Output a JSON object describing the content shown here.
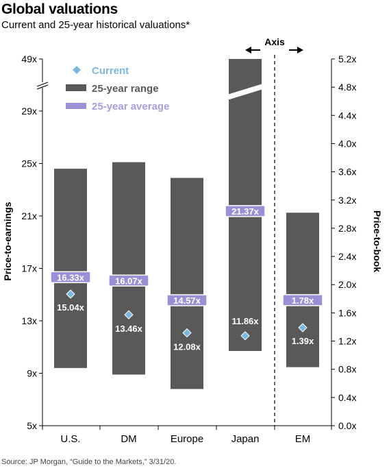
{
  "chart_data": {
    "type": "bar",
    "title": "Global valuations",
    "subtitle": "Current and 25-year historical valuations*",
    "source": "Source: JP Morgan, “Guide to the Markets,” 3/31/20.",
    "categories": [
      "U.S.",
      "DM",
      "Europe",
      "Japan",
      "EM"
    ],
    "left_axis": {
      "label": "Price-to-earnings",
      "ticks": [
        "5x",
        "9x",
        "13x",
        "17x",
        "21x",
        "25x",
        "29x",
        "49x"
      ],
      "ylim": [
        5,
        49
      ],
      "broken": true
    },
    "right_axis": {
      "label": "Price-to-book",
      "ticks": [
        "0.0x",
        "0.4x",
        "0.8x",
        "1.2x",
        "1.6x",
        "2.0x",
        "2.4x",
        "2.8x",
        "3.2x",
        "3.6x",
        "4.0x",
        "4.4x",
        "4.8x",
        "5.2x"
      ],
      "ylim": [
        0,
        5.2
      ]
    },
    "axis_divider_label": "Axis",
    "legend": {
      "current": "Current",
      "range": "25-year range",
      "average": "25-year average"
    },
    "series": [
      {
        "name": "25-year range",
        "low": [
          9.4,
          8.9,
          7.8,
          10.7,
          0.83
        ],
        "high": [
          24.6,
          25.1,
          23.9,
          49,
          3.02
        ]
      },
      {
        "name": "25-year average",
        "values": [
          16.33,
          16.07,
          14.57,
          21.37,
          1.78
        ],
        "labels": [
          "16.33x",
          "16.07x",
          "14.57x",
          "21.37x",
          "1.78x"
        ]
      },
      {
        "name": "Current",
        "values": [
          15.04,
          13.46,
          12.08,
          11.86,
          1.39
        ],
        "labels": [
          "15.04x",
          "13.46x",
          "12.08x",
          "11.86x",
          "1.39x"
        ]
      }
    ],
    "axis_map": [
      "left",
      "left",
      "left",
      "left",
      "right"
    ],
    "colors": {
      "range": "#595959",
      "average": "#9b8fd6",
      "average_border": "#ffffff",
      "current": "#7bb8e0",
      "legend_current_text": "#7bb8e0",
      "legend_avg_text": "#a99ddf",
      "legend_range_text": "#595959"
    }
  }
}
